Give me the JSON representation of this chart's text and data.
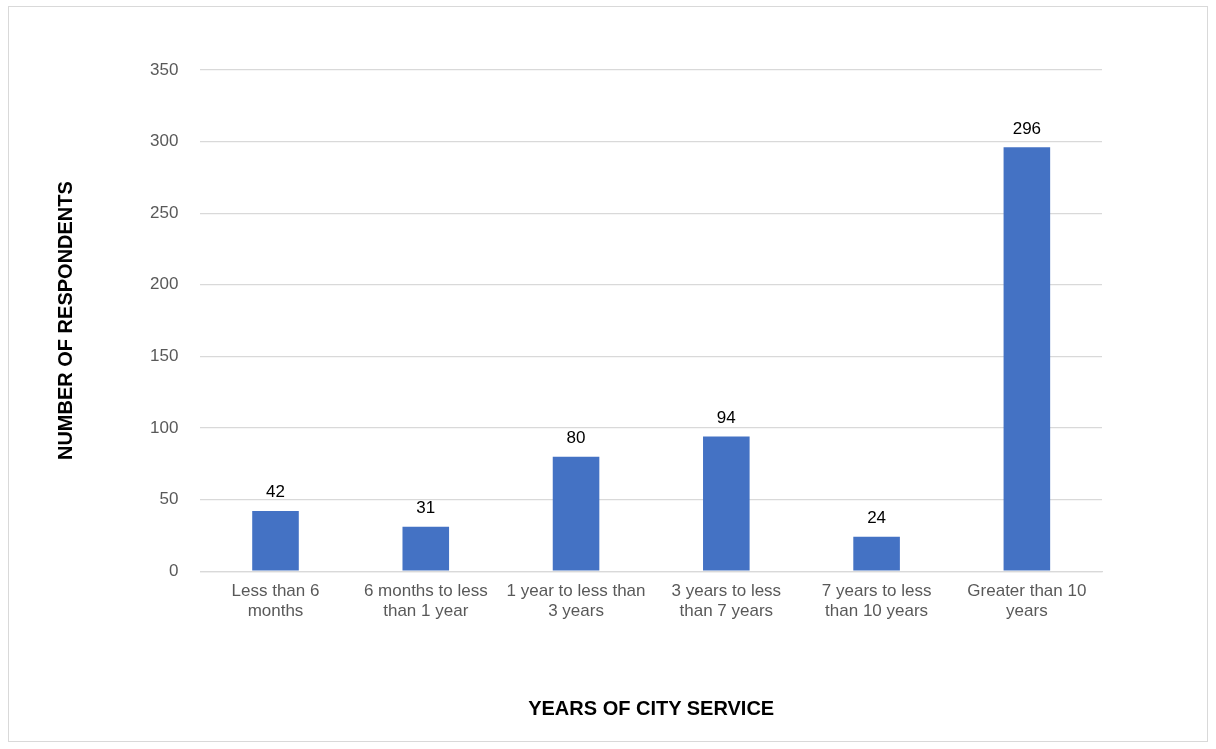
{
  "chart_data": {
    "type": "bar",
    "xlabel": "YEARS OF CITY SERVICE",
    "ylabel": "NUMBER OF RESPONDENTS",
    "categories": [
      "Less than 6 months",
      "6 months to less than 1 year",
      "1 year to less than 3 years",
      "3 years to less than 7 years",
      "7 years to less than 10 years",
      "Greater than 10 years"
    ],
    "values": [
      42,
      31,
      80,
      94,
      24,
      296
    ],
    "color": "#4472c4",
    "ylim": [
      0,
      350
    ],
    "yticks": [
      0,
      50,
      100,
      150,
      200,
      250,
      300,
      350
    ],
    "grid": "y",
    "data_labels": true,
    "legend": false
  }
}
